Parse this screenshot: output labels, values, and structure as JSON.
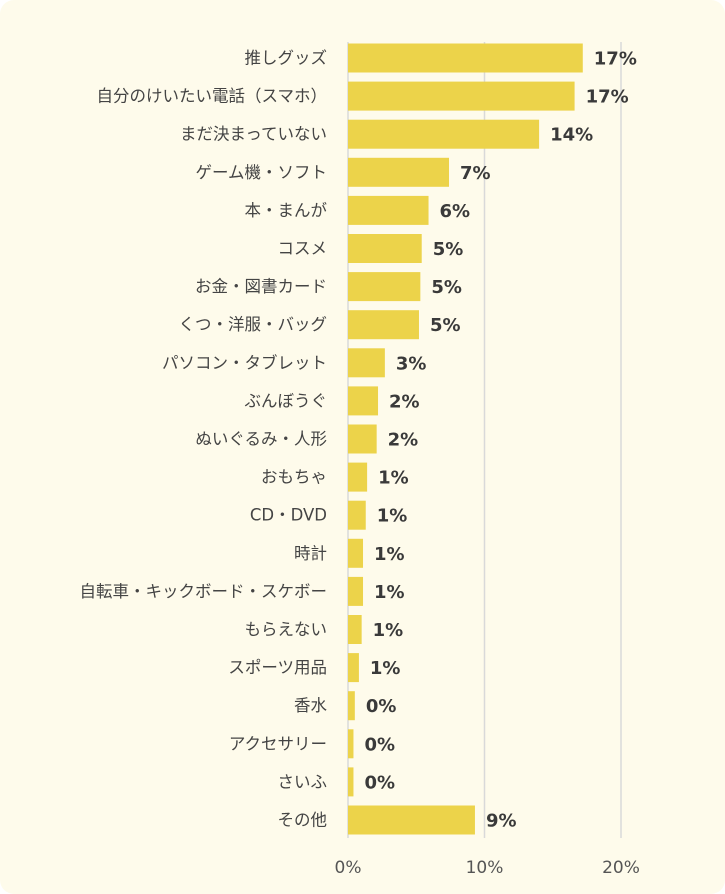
{
  "chart_data": {
    "type": "bar",
    "orientation": "horizontal",
    "categories": [
      "推しグッズ",
      "自分のけいたい電話（スマホ）",
      "まだ決まっていない",
      "ゲーム機・ソフト",
      "本・まんが",
      "コスメ",
      "お金・図書カード",
      "くつ・洋服・バッグ",
      "パソコン・タブレット",
      "ぶんぼうぐ",
      "ぬいぐるみ・人形",
      "おもちゃ",
      "CD・DVD",
      "時計",
      "自転車・キックボード・スケボー",
      "もらえない",
      "スポーツ用品",
      "香水",
      "アクセサリー",
      "さいふ",
      "その他"
    ],
    "values": [
      17.2,
      16.6,
      14.0,
      7.4,
      5.9,
      5.4,
      5.3,
      5.2,
      2.7,
      2.2,
      2.1,
      1.4,
      1.3,
      1.1,
      1.1,
      1.0,
      0.8,
      0.5,
      0.4,
      0.4,
      9.3
    ],
    "value_labels": [
      "17%",
      "17%",
      "14%",
      "7%",
      "6%",
      "5%",
      "5%",
      "5%",
      "3%",
      "2%",
      "2%",
      "1%",
      "1%",
      "1%",
      "1%",
      "1%",
      "1%",
      "0%",
      "0%",
      "0%",
      "9%"
    ],
    "xlim": [
      0,
      20
    ],
    "xticks": [
      "0%",
      "10%",
      "20%"
    ],
    "grid": true,
    "bar_color": "#ecd34a",
    "background_color": "#fefbeb",
    "grid_color": "#d9d9d9"
  }
}
